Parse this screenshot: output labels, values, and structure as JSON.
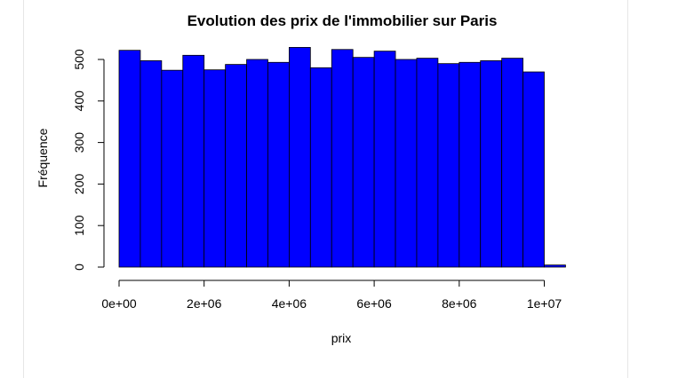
{
  "chart_data": {
    "type": "histogram",
    "title": "Evolution des prix de l'immobilier sur Paris",
    "xlabel": "prix",
    "ylabel": "Fréquence",
    "bin_width": 500000,
    "bin_starts": [
      0,
      500000,
      1000000,
      1500000,
      2000000,
      2500000,
      3000000,
      3500000,
      4000000,
      4500000,
      5000000,
      5500000,
      6000000,
      6500000,
      7000000,
      7500000,
      8000000,
      8500000,
      9000000,
      9500000,
      10000000
    ],
    "values": [
      522,
      497,
      474,
      510,
      475,
      488,
      500,
      493,
      529,
      480,
      524,
      505,
      520,
      500,
      503,
      490,
      493,
      497,
      503,
      470,
      5
    ],
    "xticks": [
      0,
      2000000,
      4000000,
      6000000,
      8000000,
      10000000
    ],
    "xtick_labels": [
      "0e+00",
      "2e+06",
      "4e+06",
      "6e+06",
      "8e+06",
      "1e+07"
    ],
    "yticks": [
      0,
      100,
      200,
      300,
      400,
      500
    ],
    "ytick_labels": [
      "0",
      "100",
      "200",
      "300",
      "400",
      "500"
    ],
    "xlim": [
      0,
      10500000
    ],
    "ylim": [
      0,
      550
    ],
    "bar_color": "#0000ff",
    "bar_border": "#000000",
    "grid": false,
    "legend": "none"
  }
}
